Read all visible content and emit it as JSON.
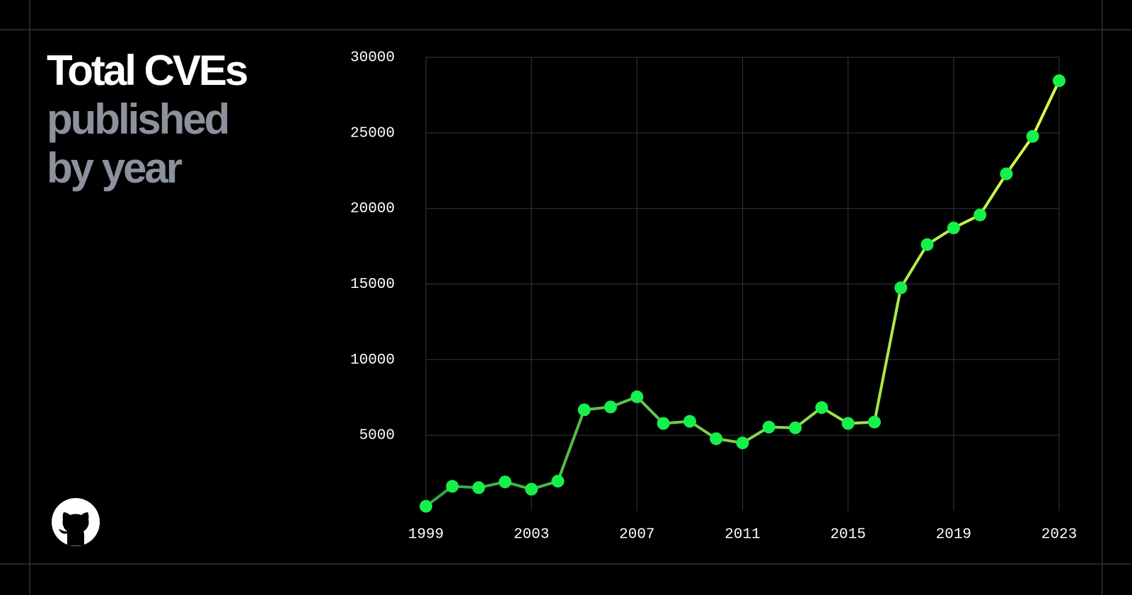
{
  "chart_data": {
    "type": "line",
    "title": "Total CVEs",
    "subtitle_lines": [
      "published",
      "by year"
    ],
    "x": [
      1999,
      2000,
      2001,
      2002,
      2003,
      2004,
      2005,
      2006,
      2007,
      2008,
      2009,
      2010,
      2011,
      2012,
      2013,
      2014,
      2015,
      2016,
      2017,
      2018,
      2019,
      2020,
      2021,
      2022,
      2023
    ],
    "series": [
      {
        "color": "#16f04a",
        "line_gradient": [
          "#2aa84a",
          "#d8ff4a"
        ],
        "values": [
          300,
          1620,
          1530,
          1910,
          1430,
          1960,
          6680,
          6870,
          7540,
          5780,
          5920,
          4770,
          4490,
          5540,
          5490,
          6830,
          5780,
          5870,
          14750,
          17610,
          18710,
          19570,
          22290,
          24770,
          28450
        ]
      }
    ],
    "xlim": [
      1999,
      2023
    ],
    "xticks": [
      1999,
      2003,
      2007,
      2011,
      2015,
      2019,
      2023
    ],
    "ylim": [
      0,
      30000
    ],
    "yticks": [
      5000,
      10000,
      15000,
      20000,
      25000,
      30000
    ],
    "grid": true
  }
}
